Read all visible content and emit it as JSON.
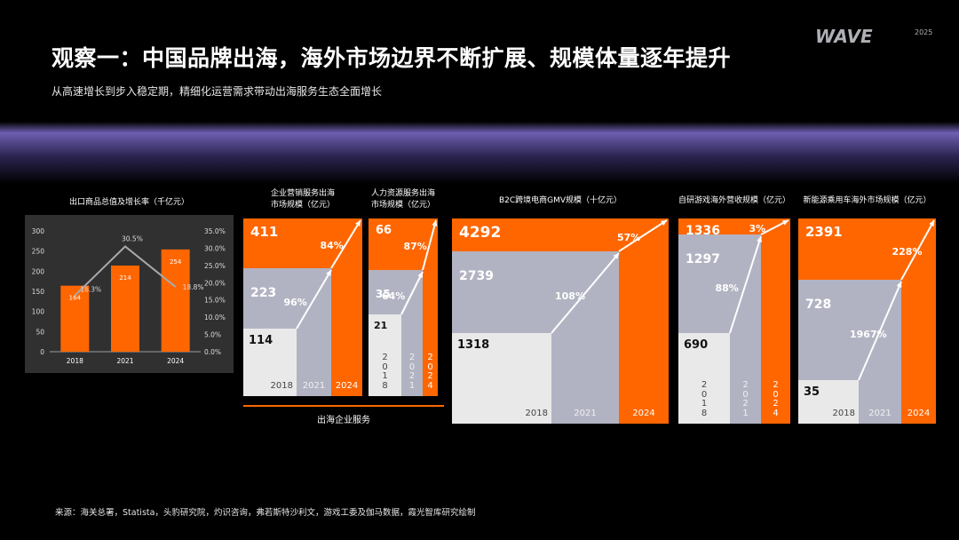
{
  "title": "观察一：中国品牌出海，海外市场边界不断扩展、规模体量逐年提升",
  "subtitle": "从高速增长到步入稳定期，精细化运营需求带动出海服务生态全面增长",
  "logo": {
    "text": "WAVE",
    "year": "2025"
  },
  "colors": {
    "orange": "#ff6600",
    "gray": "#b2b3c2",
    "light": "#e9e9e9",
    "panel": "#303030"
  },
  "group_label": "出海企业服务",
  "footer": "来源：海关总署，Statista，头豹研究院，灼识咨询，弗若斯特沙利文，游戏工委及伽马数据，霞光智库研究绘制",
  "chart_data": [
    {
      "type": "bar",
      "title": "出口商品总值及增长率（千亿元）",
      "categories": [
        "2018",
        "2021",
        "2024"
      ],
      "series": [
        {
          "type": "bar",
          "values": [
            164,
            214,
            254
          ],
          "labels": [
            "164",
            "214",
            "254"
          ]
        },
        {
          "type": "line",
          "values": [
            16.3,
            30.5,
            18.8
          ],
          "labels": [
            "16.3%",
            "30.5%",
            "18.8%"
          ]
        }
      ],
      "ylim": [
        0,
        300
      ],
      "y_ticks": [
        "0",
        "50",
        "100",
        "150",
        "200",
        "250",
        "300"
      ],
      "y2lim": [
        0,
        35
      ],
      "y2_ticks": [
        "0.0%",
        "5.0%",
        "10.0%",
        "15.0%",
        "20.0%",
        "25.0%",
        "30.0%",
        "35.0%"
      ]
    },
    {
      "type": "area",
      "title_lines": [
        "企业营销服务出海",
        "市场规模（亿元）"
      ],
      "categories": [
        "2018",
        "2021",
        "2024"
      ],
      "values": [
        114,
        223,
        411
      ],
      "growth": [
        "96%",
        "84%"
      ]
    },
    {
      "type": "area",
      "title_lines": [
        "人力资源服务出海",
        "市场规模（亿元）"
      ],
      "categories": [
        "2018",
        "2021",
        "2024"
      ],
      "values": [
        21,
        35,
        66
      ],
      "growth": [
        "64%",
        "87%"
      ]
    },
    {
      "type": "area",
      "title_lines": [
        "B2C跨境电商GMV规模（十亿元）"
      ],
      "categories": [
        "2018",
        "2021",
        "2024"
      ],
      "values": [
        1318,
        2739,
        4292
      ],
      "growth": [
        "108%",
        "57%"
      ]
    },
    {
      "type": "area",
      "title_lines": [
        "自研游戏海外营收规模（亿元）"
      ],
      "categories": [
        "2018",
        "2021",
        "2024"
      ],
      "values": [
        690,
        1297,
        1336
      ],
      "growth": [
        "88%",
        "3%"
      ]
    },
    {
      "type": "area",
      "title_lines": [
        "新能源乘用车海外市场规模（亿元）"
      ],
      "categories": [
        "2018",
        "2021",
        "2024"
      ],
      "values": [
        35,
        728,
        2391
      ],
      "growth": [
        "1967%",
        "228%"
      ]
    }
  ]
}
